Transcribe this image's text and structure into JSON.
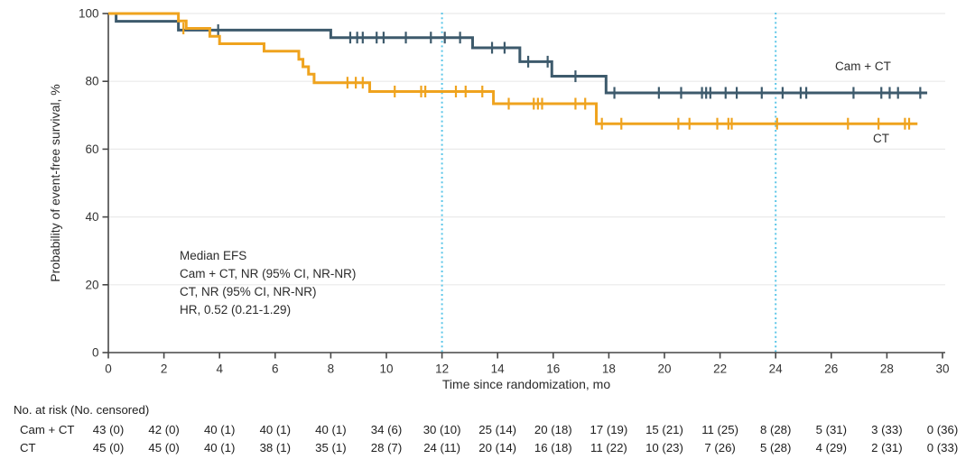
{
  "chart_data": {
    "type": "line",
    "subtype": "kaplan-meier-step",
    "title": "",
    "xlabel": "Time since randomization, mo",
    "ylabel": "Probability of event-free survival, %",
    "xlim": [
      0,
      30
    ],
    "ylim": [
      0,
      100
    ],
    "x_ticks": [
      0,
      2,
      4,
      6,
      8,
      10,
      12,
      14,
      16,
      18,
      20,
      22,
      24,
      26,
      28,
      30
    ],
    "y_ticks": [
      0,
      20,
      40,
      60,
      80,
      100
    ],
    "grid": "horizontal",
    "grid_color": "#eaeaea",
    "axis_color": "#474747",
    "reference_lines_x": [
      12,
      24
    ],
    "reference_line_color": "#5bc6e8",
    "annotation_lines": [
      "Median EFS",
      "Cam + CT, NR (95% CI, NR-NR)",
      "CT, NR (95% CI, NR-NR)",
      "HR, 0.52 (0.21-1.29)"
    ],
    "series": [
      {
        "name": "Cam + CT",
        "color": "#3d5a6c",
        "end_time": 29.45,
        "steps": [
          [
            0,
            100
          ],
          [
            0.28,
            97.7
          ],
          [
            2.52,
            95.1
          ],
          [
            8.0,
            92.9
          ],
          [
            13.1,
            89.9
          ],
          [
            14.8,
            85.8
          ],
          [
            15.95,
            81.5
          ],
          [
            17.9,
            76.6
          ]
        ],
        "censor_marks": [
          [
            3.95,
            95.1
          ],
          [
            8.7,
            92.9
          ],
          [
            8.95,
            92.9
          ],
          [
            9.15,
            92.9
          ],
          [
            9.65,
            92.9
          ],
          [
            9.9,
            92.9
          ],
          [
            10.7,
            92.9
          ],
          [
            11.6,
            92.9
          ],
          [
            12.1,
            92.9
          ],
          [
            12.65,
            92.9
          ],
          [
            13.8,
            89.9
          ],
          [
            14.25,
            89.9
          ],
          [
            15.1,
            85.8
          ],
          [
            15.8,
            85.8
          ],
          [
            16.8,
            81.5
          ],
          [
            18.2,
            76.6
          ],
          [
            19.8,
            76.6
          ],
          [
            20.6,
            76.6
          ],
          [
            21.35,
            76.6
          ],
          [
            21.5,
            76.6
          ],
          [
            21.65,
            76.6
          ],
          [
            22.2,
            76.6
          ],
          [
            22.6,
            76.6
          ],
          [
            23.5,
            76.6
          ],
          [
            24.25,
            76.6
          ],
          [
            24.9,
            76.6
          ],
          [
            25.1,
            76.6
          ],
          [
            26.8,
            76.6
          ],
          [
            27.8,
            76.6
          ],
          [
            28.1,
            76.6
          ],
          [
            28.4,
            76.6
          ],
          [
            29.2,
            76.6
          ]
        ]
      },
      {
        "name": "CT",
        "color": "#efa31e",
        "end_time": 29.1,
        "steps": [
          [
            0,
            100
          ],
          [
            2.52,
            97.8
          ],
          [
            2.8,
            95.6
          ],
          [
            3.65,
            93.3
          ],
          [
            4.0,
            91.1
          ],
          [
            5.6,
            88.9
          ],
          [
            6.85,
            86.5
          ],
          [
            7.0,
            84.3
          ],
          [
            7.2,
            82.1
          ],
          [
            7.4,
            79.6
          ],
          [
            9.4,
            77.0
          ],
          [
            13.85,
            73.4
          ],
          [
            17.55,
            67.5
          ]
        ],
        "censor_marks": [
          [
            2.7,
            95.6
          ],
          [
            8.6,
            79.6
          ],
          [
            8.9,
            79.6
          ],
          [
            9.15,
            79.6
          ],
          [
            10.3,
            77.0
          ],
          [
            11.25,
            77.0
          ],
          [
            11.4,
            77.0
          ],
          [
            12.5,
            77.0
          ],
          [
            12.85,
            77.0
          ],
          [
            13.45,
            77.0
          ],
          [
            14.4,
            73.4
          ],
          [
            15.3,
            73.4
          ],
          [
            15.45,
            73.4
          ],
          [
            15.6,
            73.4
          ],
          [
            16.8,
            73.4
          ],
          [
            17.15,
            73.4
          ],
          [
            17.75,
            67.5
          ],
          [
            18.45,
            67.5
          ],
          [
            20.5,
            67.5
          ],
          [
            20.9,
            67.5
          ],
          [
            21.9,
            67.5
          ],
          [
            22.3,
            67.5
          ],
          [
            22.42,
            67.5
          ],
          [
            24.05,
            67.5
          ],
          [
            26.6,
            67.5
          ],
          [
            27.7,
            67.5
          ],
          [
            28.65,
            67.5
          ],
          [
            28.8,
            67.5
          ]
        ]
      }
    ]
  },
  "risk_table": {
    "header": "No. at risk (No. censored)",
    "times": [
      0,
      2,
      4,
      6,
      8,
      10,
      12,
      14,
      16,
      18,
      20,
      22,
      24,
      26,
      28,
      30
    ],
    "rows": [
      {
        "label": "Cam + CT",
        "values": [
          "43 (0)",
          "42 (0)",
          "40 (1)",
          "40 (1)",
          "40 (1)",
          "34 (6)",
          "30 (10)",
          "25 (14)",
          "20 (18)",
          "17 (19)",
          "15 (21)",
          "11 (25)",
          "8 (28)",
          "5 (31)",
          "3 (33)",
          "0 (36)"
        ]
      },
      {
        "label": "CT",
        "values": [
          "45 (0)",
          "45 (0)",
          "40 (1)",
          "38 (1)",
          "35 (1)",
          "28 (7)",
          "24 (11)",
          "20 (14)",
          "16 (18)",
          "11 (22)",
          "10 (23)",
          "7 (26)",
          "5 (28)",
          "4 (29)",
          "2 (31)",
          "0 (33)"
        ]
      }
    ]
  }
}
